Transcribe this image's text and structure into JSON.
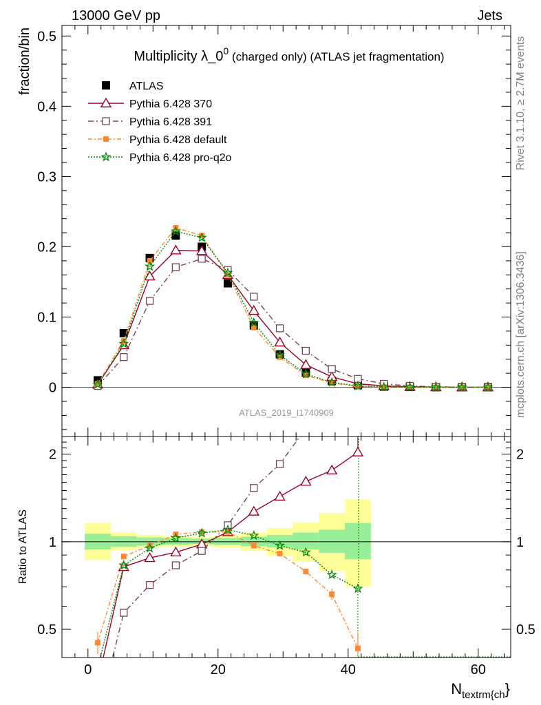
{
  "header": {
    "left": "13000 GeV pp",
    "right": "Jets"
  },
  "side_labels": {
    "rivet": "Rivet 3.1.10, ≥ 2.7M events",
    "mcplots": "mcplots.cern.ch [arXiv:1306.3436]"
  },
  "main": {
    "title_main": "Multiplicity λ_0",
    "title_sup": "0",
    "title_extra": " (charged only) (ATLAS jet fragmentation)",
    "ylabel": "fraction/bin",
    "watermark": "ATLAS_2019_I1740909",
    "yticks": [
      "0",
      "0.1",
      "0.2",
      "0.3",
      "0.4",
      "0.5"
    ]
  },
  "ratio": {
    "ylabel": "Ratio to ATLAS",
    "yticks_left": [
      "0.5",
      "1",
      "2"
    ],
    "yticks_right": [
      "0.5",
      "1",
      "2"
    ]
  },
  "xaxis": {
    "label": "N",
    "label_sub": "textrm{ch",
    "label_tail": "}",
    "ticks": [
      "0",
      "20",
      "40",
      "60"
    ]
  },
  "legend": [
    {
      "name": "ATLAS",
      "color": "#000000",
      "marker": "filled-square"
    },
    {
      "name": "Pythia 6.428 370",
      "color": "#990022",
      "marker": "open-triangle"
    },
    {
      "name": "Pythia 6.428 391",
      "color": "#774455",
      "marker": "open-square"
    },
    {
      "name": "Pythia 6.428 default",
      "color": "#ff8833",
      "marker": "filled-square"
    },
    {
      "name": "Pythia 6.428 pro-q2o",
      "color": "#008800",
      "marker": "star"
    }
  ],
  "chart_data": {
    "type": "line",
    "x_range": [
      -4,
      65
    ],
    "main_ylim": [
      -0.07,
      0.515
    ],
    "ratio_ylim_log": [
      0.4,
      2.3
    ],
    "x": [
      1.5,
      5.5,
      9.5,
      13.5,
      17.5,
      21.5,
      25.5,
      29.5,
      33.5,
      37.5,
      41.5,
      45.5,
      49.5,
      53.5,
      57.5,
      61.5
    ],
    "series": [
      {
        "name": "ATLAS",
        "values": [
          0.01,
          0.077,
          0.184,
          0.216,
          0.2,
          0.148,
          0.088,
          0.047,
          0.021,
          0.009,
          0.003,
          0.001,
          0.0005,
          0.0002,
          0.0001,
          0.0001
        ]
      },
      {
        "name": "Pythia 6.428 370",
        "values": [
          0.004,
          0.06,
          0.158,
          0.195,
          0.194,
          0.16,
          0.109,
          0.064,
          0.032,
          0.015,
          0.005,
          0.002,
          0.0008,
          0.0003,
          0.0001,
          0.0001
        ]
      },
      {
        "name": "Pythia 6.428 391",
        "values": [
          0.002,
          0.043,
          0.123,
          0.171,
          0.183,
          0.167,
          0.129,
          0.084,
          0.052,
          0.026,
          0.012,
          0.005,
          0.002,
          0.0008,
          0.0003,
          0.0001
        ]
      },
      {
        "name": "Pythia 6.428 default",
        "values": [
          0.005,
          0.066,
          0.18,
          0.227,
          0.216,
          0.16,
          0.085,
          0.043,
          0.017,
          0.006,
          0.0013,
          0.0003,
          0.0001,
          0.0,
          0.0,
          0.0
        ]
      },
      {
        "name": "Pythia 6.428 pro-q2o",
        "values": [
          0.004,
          0.062,
          0.172,
          0.222,
          0.213,
          0.163,
          0.092,
          0.046,
          0.019,
          0.007,
          0.002,
          0.0005,
          0.0001,
          0.0,
          0.0,
          0.0
        ]
      }
    ],
    "ratio_x": [
      1.5,
      5.5,
      9.5,
      13.5,
      17.5,
      21.5,
      25.5,
      29.5,
      33.5,
      37.5,
      41.5
    ],
    "ratio_series": [
      {
        "name": "Pythia 6.428 370",
        "values": [
          0.33,
          0.82,
          0.88,
          0.92,
          0.98,
          1.08,
          1.27,
          1.43,
          1.61,
          1.76,
          2.03
        ]
      },
      {
        "name": "Pythia 6.428 391",
        "values": [
          0.25,
          0.57,
          0.71,
          0.83,
          0.93,
          1.14,
          1.53,
          1.85,
          2.45,
          3.0,
          3.5
        ]
      },
      {
        "name": "Pythia 6.428 default",
        "values": [
          0.45,
          0.89,
          0.97,
          1.06,
          1.08,
          1.08,
          0.97,
          0.91,
          0.79,
          0.66,
          0.43
        ]
      },
      {
        "name": "Pythia 6.428 pro-q2o",
        "values": [
          0.37,
          0.83,
          0.95,
          1.03,
          1.07,
          1.1,
          1.05,
          0.97,
          0.92,
          0.77,
          0.69
        ]
      }
    ],
    "ratio_errors_default": [
      0.04,
      0.0,
      0.0,
      0.0,
      0.0,
      0.0,
      0.0,
      0.0,
      0.015,
      0.03,
      0.06
    ],
    "bands": {
      "edges": [
        -0.5,
        3.5,
        7.5,
        11.5,
        15.5,
        19.5,
        23.5,
        27.5,
        31.5,
        35.5,
        39.5,
        43.5
      ],
      "stat_lo": [
        0.94,
        0.96,
        0.97,
        0.975,
        0.98,
        0.975,
        0.965,
        0.955,
        0.94,
        0.915,
        0.87
      ],
      "stat_hi": [
        1.065,
        1.045,
        1.035,
        1.03,
        1.025,
        1.03,
        1.04,
        1.055,
        1.075,
        1.1,
        1.16
      ],
      "tot_lo": [
        0.865,
        0.935,
        0.955,
        0.96,
        0.965,
        0.955,
        0.93,
        0.895,
        0.855,
        0.795,
        0.7
      ],
      "tot_hi": [
        1.16,
        1.075,
        1.055,
        1.045,
        1.04,
        1.05,
        1.075,
        1.115,
        1.165,
        1.255,
        1.4
      ],
      "stat_color": "#99ee99",
      "total_color": "#ffff99"
    }
  }
}
